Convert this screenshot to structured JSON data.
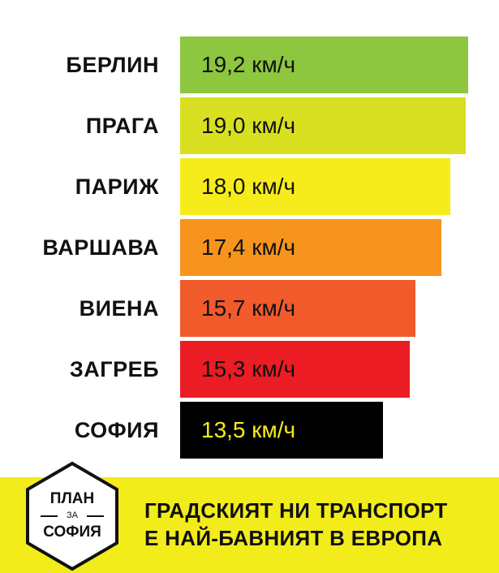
{
  "chart_data": {
    "type": "bar",
    "orientation": "horizontal",
    "categories": [
      "БЕРЛИН",
      "ПРАГА",
      "ПАРИЖ",
      "ВАРШАВА",
      "ВИЕНА",
      "ЗАГРЕБ",
      "СОФИЯ"
    ],
    "values": [
      19.2,
      19.0,
      18.0,
      17.4,
      15.7,
      15.3,
      13.5
    ],
    "value_labels": [
      "19,2 км/ч",
      "19,0 км/ч",
      "18,0 км/ч",
      "17,4 км/ч",
      "15,7 км/ч",
      "15,3 км/ч",
      "13,5 км/ч"
    ],
    "bar_colors": [
      "#8dc63f",
      "#d9e021",
      "#f7ec1b",
      "#f7941e",
      "#f15a2b",
      "#ec1c24",
      "#000000"
    ],
    "label_colors": [
      "#111111",
      "#111111",
      "#111111",
      "#111111",
      "#111111",
      "#111111",
      "#f7ec1b"
    ],
    "title": "",
    "xlabel": "",
    "ylabel": "",
    "grid": false
  },
  "footer": {
    "logo_top": "ПЛАН",
    "logo_mid": "ЗА",
    "logo_bottom": "СОФИЯ",
    "headline_line1": "ГРАДСКИЯТ НИ ТРАНСПОРТ",
    "headline_line2": "Е НАЙ-БАВНИЯТ В ЕВРОПА"
  }
}
